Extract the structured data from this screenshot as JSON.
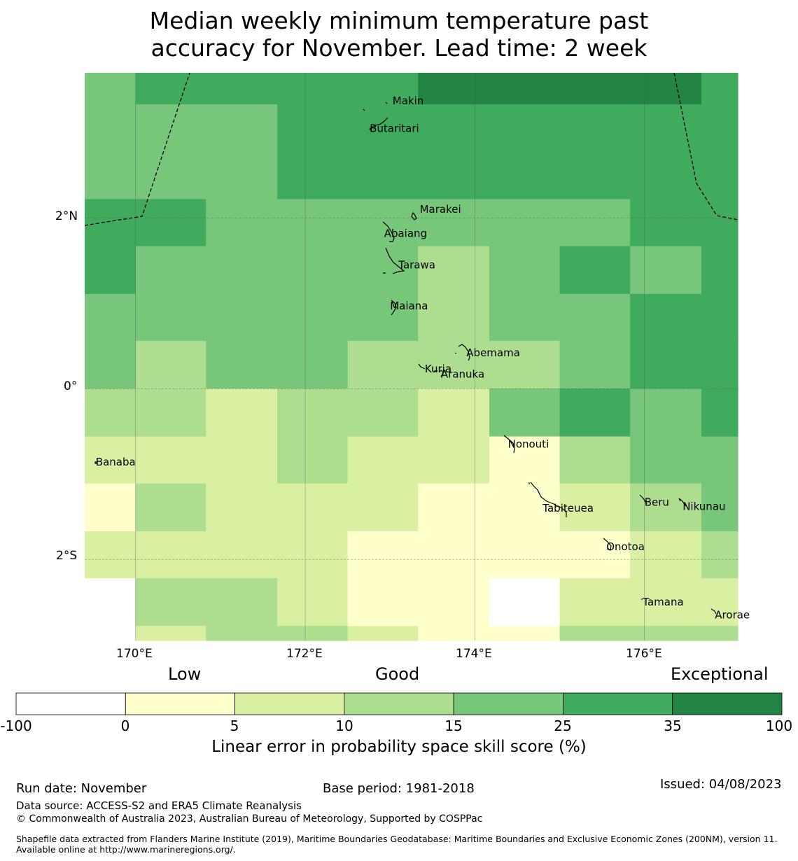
{
  "title": {
    "line1": "Median weekly minimum temperature past",
    "line2": "accuracy for November. Lead time: 2 week"
  },
  "map": {
    "lon_range": [
      169.4,
      177.1
    ],
    "lat_range": [
      -2.95,
      3.7
    ],
    "grid_lons": [
      170,
      172,
      174,
      176
    ],
    "grid_lats": [
      2,
      0,
      -2
    ],
    "x_ticks": [
      "170°E",
      "172°E",
      "174°E",
      "176°E"
    ],
    "y_ticks": [
      "2°N",
      "0°",
      "2°S"
    ],
    "cell_lon_edges": [
      169.4,
      170.0,
      170.83,
      171.67,
      172.5,
      173.33,
      174.17,
      175.0,
      175.83,
      176.67,
      177.1
    ],
    "cell_lat_edges": [
      3.7,
      3.33,
      2.22,
      1.67,
      1.11,
      0.56,
      0.0,
      -0.56,
      -1.11,
      -1.67,
      -2.22,
      -2.78,
      -2.95
    ],
    "cell_classes": [
      [
        4,
        5,
        5,
        5,
        5,
        6,
        6,
        6,
        6,
        5
      ],
      [
        4,
        4,
        4,
        5,
        5,
        5,
        5,
        5,
        5,
        5
      ],
      [
        5,
        5,
        4,
        4,
        4,
        4,
        4,
        4,
        5,
        5
      ],
      [
        5,
        4,
        4,
        4,
        4,
        3,
        4,
        5,
        4,
        5
      ],
      [
        4,
        4,
        4,
        4,
        4,
        3,
        4,
        4,
        5,
        5
      ],
      [
        4,
        3,
        4,
        4,
        3,
        3,
        3,
        4,
        5,
        5
      ],
      [
        3,
        3,
        2,
        3,
        3,
        2,
        4,
        5,
        4,
        5
      ],
      [
        2,
        2,
        2,
        3,
        2,
        2,
        1,
        3,
        4,
        4
      ],
      [
        1,
        3,
        2,
        2,
        2,
        1,
        1,
        2,
        3,
        4
      ],
      [
        2,
        2,
        2,
        2,
        1,
        1,
        1,
        1,
        2,
        3
      ],
      [
        0,
        3,
        3,
        2,
        1,
        1,
        0,
        2,
        2,
        2
      ],
      [
        0,
        2,
        3,
        3,
        2,
        1,
        1,
        3,
        3,
        3
      ]
    ],
    "islands": [
      {
        "name": "Makin",
        "lon": 173.03,
        "lat": 3.37
      },
      {
        "name": "Butaritari",
        "lon": 172.76,
        "lat": 3.05
      },
      {
        "name": "Marakei",
        "lon": 173.35,
        "lat": 2.1
      },
      {
        "name": "Abaiang",
        "lon": 172.93,
        "lat": 1.82
      },
      {
        "name": "Tarawa",
        "lon": 173.1,
        "lat": 1.45
      },
      {
        "name": "Maiana",
        "lon": 173.0,
        "lat": 0.97
      },
      {
        "name": "Abemama",
        "lon": 173.9,
        "lat": 0.42
      },
      {
        "name": "Kuria",
        "lon": 173.41,
        "lat": 0.23
      },
      {
        "name": "Aranuka",
        "lon": 173.6,
        "lat": 0.17
      },
      {
        "name": "Nonouti",
        "lon": 174.39,
        "lat": -0.65
      },
      {
        "name": "Banaba",
        "lon": 169.53,
        "lat": -0.86
      },
      {
        "name": "Tabiteuea",
        "lon": 174.8,
        "lat": -1.4
      },
      {
        "name": "Beru",
        "lon": 176.0,
        "lat": -1.33
      },
      {
        "name": "Nikunau",
        "lon": 176.45,
        "lat": -1.38
      },
      {
        "name": "Onotoa",
        "lon": 175.55,
        "lat": -1.85
      },
      {
        "name": "Tamana",
        "lon": 175.98,
        "lat": -2.5
      },
      {
        "name": "Arorae",
        "lon": 176.83,
        "lat": -2.65
      }
    ]
  },
  "colorbar": {
    "categories": [
      "Low",
      "Good",
      "Exceptional"
    ],
    "boundaries": [
      "-100",
      "0",
      "5",
      "10",
      "15",
      "25",
      "35",
      "100"
    ],
    "colors": [
      "#ffffff",
      "#ffffcc",
      "#d9f0a3",
      "#addd8e",
      "#78c679",
      "#41ab5d",
      "#238443"
    ],
    "title": "Linear error in probability space skill score (%)"
  },
  "footer": {
    "run_date": "Run date: November",
    "base_period": "Base period: 1981-2018",
    "issued": "Issued: 04/08/2023",
    "data_source": "Data source: ACCESS-S2 and ERA5 Climate Reanalysis",
    "copyright": "© Commonwealth of Australia 2023, Australian Bureau of Meteorology, Supported by COSPPac",
    "shapefile": "Shapefile data extracted from Flanders Marine Institute (2019), Maritime Boundaries Geodatabase: Maritime Boundaries and Exclusive Economic Zones (200NM), version 11. Available online at http://www.marineregions.org/."
  }
}
